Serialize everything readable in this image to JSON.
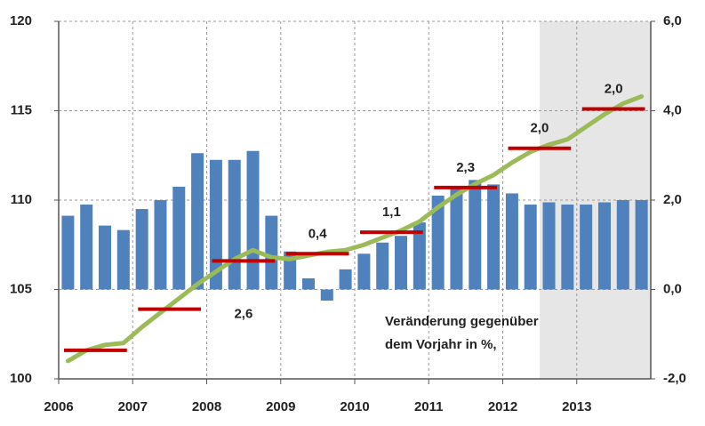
{
  "chart_data": {
    "type": "bar-line",
    "x": [
      2006.125,
      2006.375,
      2006.625,
      2006.875,
      2007.125,
      2007.375,
      2007.625,
      2007.875,
      2008.125,
      2008.375,
      2008.625,
      2008.875,
      2009.125,
      2009.375,
      2009.625,
      2009.875,
      2010.125,
      2010.375,
      2010.625,
      2010.875,
      2011.125,
      2011.375,
      2011.625,
      2011.875,
      2012.125,
      2012.375,
      2012.625,
      2012.875,
      2013.125,
      2013.375,
      2013.625,
      2013.875
    ],
    "xlim": [
      2006,
      2014
    ],
    "xticks": [
      2006,
      2007,
      2008,
      2009,
      2010,
      2011,
      2012,
      2013
    ],
    "ylim": [
      100,
      120
    ],
    "yticks": [
      100,
      105,
      110,
      115,
      120
    ],
    "y2lim": [
      -2,
      6
    ],
    "y2ticks": [
      {
        "value": -2,
        "label": "-2,0"
      },
      {
        "value": 0,
        "label": "0,0"
      },
      {
        "value": 2,
        "label": "2,0"
      },
      {
        "value": 4,
        "label": "4,0"
      },
      {
        "value": 6,
        "label": "6,0"
      }
    ],
    "grid": true,
    "shade_xlim": [
      2012.5,
      2014
    ],
    "series": [
      {
        "type": "bar",
        "axis": "y2",
        "color": "#4f81bd",
        "values": [
          1.65,
          1.9,
          1.43,
          1.33,
          1.8,
          2.0,
          2.3,
          3.05,
          2.9,
          2.9,
          3.1,
          1.65,
          0.85,
          0.25,
          -0.25,
          0.45,
          0.8,
          1.05,
          1.2,
          1.5,
          2.1,
          2.25,
          2.45,
          2.35,
          2.15,
          1.9,
          1.95,
          1.9,
          1.9,
          1.95,
          2.0,
          2.0
        ]
      },
      {
        "type": "line",
        "color": "#9bbb59",
        "values": [
          101.0,
          101.6,
          101.9,
          102.0,
          102.9,
          103.7,
          104.5,
          105.3,
          106.0,
          106.7,
          107.2,
          106.8,
          106.7,
          106.9,
          107.1,
          107.2,
          107.5,
          107.9,
          108.3,
          108.8,
          109.6,
          110.3,
          110.9,
          111.4,
          112.1,
          112.7,
          113.1,
          113.4,
          114.1,
          114.8,
          115.4,
          115.8
        ]
      },
      {
        "type": "segments",
        "color": "#c00000",
        "x": [
          2006,
          2007,
          2008,
          2009,
          2010,
          2011,
          2012,
          2013
        ],
        "values": [
          101.6,
          103.9,
          106.6,
          107.0,
          108.2,
          110.7,
          112.9,
          115.1
        ]
      }
    ],
    "annual_change": {
      "values": [
        null,
        null,
        2.6,
        0.4,
        1.1,
        2.3,
        2.0,
        2.0
      ],
      "value_labels": [
        null,
        null,
        "2,6",
        "0,4",
        "1,1",
        "2,3",
        "2,0",
        "2,0"
      ]
    },
    "annotation": [
      "Veränderung gegenüber",
      "dem Vorjahr in %,"
    ]
  }
}
